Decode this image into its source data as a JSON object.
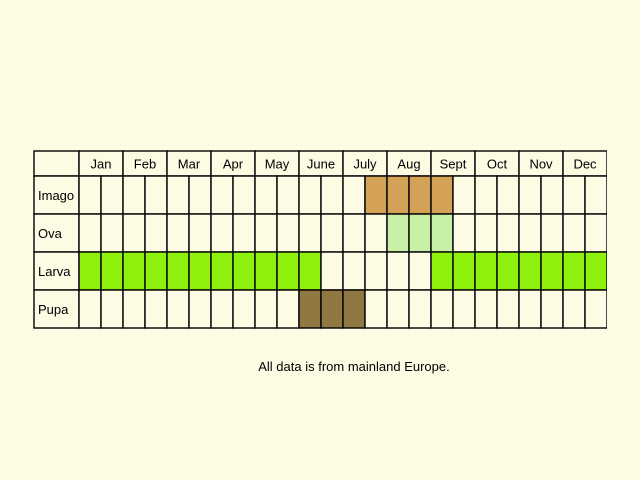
{
  "months": [
    "Jan",
    "Feb",
    "Mar",
    "Apr",
    "May",
    "June",
    "July",
    "Aug",
    "Sept",
    "Oct",
    "Nov",
    "Dec"
  ],
  "stages": [
    {
      "key": "imago",
      "label": "Imago",
      "color": "#d4a256",
      "filled_half_months": [
        13,
        14,
        15,
        16
      ]
    },
    {
      "key": "ova",
      "label": "Ova",
      "color": "#c8f0a6",
      "filled_half_months": [
        14,
        15,
        16
      ]
    },
    {
      "key": "larva",
      "label": "Larva",
      "color": "#8ef00b",
      "filled_half_months": [
        0,
        1,
        2,
        3,
        4,
        5,
        6,
        7,
        8,
        9,
        10,
        16,
        17,
        18,
        19,
        20,
        21,
        22,
        23
      ]
    },
    {
      "key": "pupa",
      "label": "Pupa",
      "color": "#8f7841",
      "filled_half_months": [
        10,
        11,
        12
      ]
    }
  ],
  "empty_color": "#fdfbe3",
  "footnote": "All data is from mainland Europe."
}
